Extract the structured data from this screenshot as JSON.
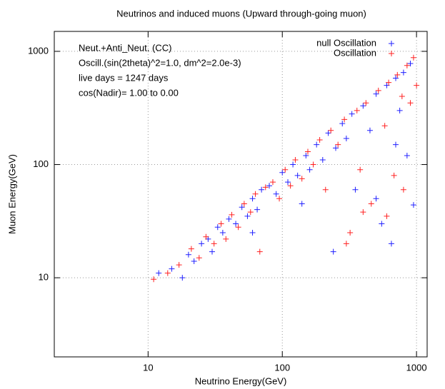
{
  "chart_data": {
    "type": "scatter",
    "title": "Neutrinos and induced muons (Upward through-going muon)",
    "x_label": "Neutrino Energy(GeV)",
    "y_label": "Muon Energy(GeV)",
    "annotations": [
      "Neut.+Anti_Neut. (CC)",
      "Oscill.(sin(2theta)^2=1.0, dm^2=2.0e-3)",
      "live days = 1247 days",
      "cos(Nadir)= 1.00 to 0.00"
    ],
    "xscale": "log",
    "yscale": "log",
    "xlim": [
      2,
      1200
    ],
    "ylim": [
      2,
      1500
    ],
    "xticks": [
      10,
      100,
      1000
    ],
    "yticks": [
      10,
      100,
      1000
    ],
    "grid": true,
    "legend": "top-right",
    "series": [
      {
        "name": "null Oscillation",
        "color": "#2020ff",
        "x": [
          12,
          15,
          18,
          20,
          22,
          25,
          28,
          30,
          33,
          36,
          40,
          45,
          50,
          55,
          60,
          65,
          70,
          80,
          90,
          100,
          110,
          120,
          130,
          150,
          160,
          180,
          200,
          220,
          250,
          280,
          300,
          330,
          350,
          400,
          450,
          500,
          550,
          600,
          650,
          700,
          750,
          800,
          850,
          900,
          950,
          240,
          500,
          60,
          140,
          700
        ],
        "values": [
          11,
          12,
          10,
          16,
          14,
          20,
          22,
          17,
          28,
          25,
          33,
          30,
          42,
          35,
          50,
          40,
          60,
          65,
          55,
          85,
          70,
          100,
          80,
          120,
          90,
          150,
          110,
          190,
          140,
          230,
          170,
          280,
          60,
          330,
          200,
          420,
          30,
          500,
          20,
          580,
          300,
          650,
          120,
          780,
          44,
          17,
          50,
          25,
          45,
          150
        ]
      },
      {
        "name": "Oscillation",
        "color": "#ff2020",
        "x": [
          11,
          14,
          17,
          21,
          24,
          27,
          31,
          35,
          38,
          42,
          47,
          52,
          58,
          63,
          68,
          75,
          85,
          95,
          105,
          115,
          125,
          140,
          155,
          170,
          190,
          210,
          230,
          260,
          290,
          320,
          360,
          380,
          420,
          460,
          520,
          580,
          620,
          680,
          720,
          780,
          850,
          900,
          950,
          600,
          300,
          1000,
          800,
          400
        ],
        "values": [
          9.7,
          11,
          13,
          18,
          15,
          23,
          20,
          30,
          22,
          36,
          28,
          45,
          38,
          55,
          17,
          63,
          70,
          50,
          90,
          65,
          110,
          75,
          130,
          100,
          165,
          60,
          200,
          150,
          250,
          25,
          300,
          90,
          350,
          45,
          450,
          220,
          530,
          80,
          620,
          400,
          750,
          350,
          880,
          35,
          20,
          500,
          60,
          38
        ]
      }
    ]
  }
}
